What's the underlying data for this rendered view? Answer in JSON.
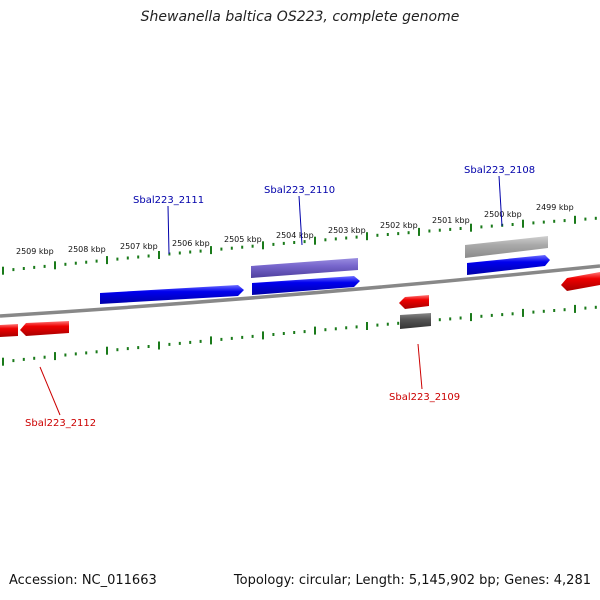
{
  "title": "Shewanella baltica OS223, complete genome",
  "footer": {
    "accession": "Accession: NC_011663",
    "summary": "Topology: circular; Length: 5,145,902 bp; Genes: 4,281"
  },
  "scale_labels": [
    "2509 kbp",
    "2508 kbp",
    "2507 kbp",
    "2506 kbp",
    "2505 kbp",
    "2504 kbp",
    "2503 kbp",
    "2502 kbp",
    "2501 kbp",
    "2500 kbp",
    "2499 kbp"
  ],
  "gene_labels": {
    "g2111": "Sbal223_2111",
    "g2110": "Sbal223_2110",
    "g2108": "Sbal223_2108",
    "g2112": "Sbal223_2112",
    "g2109": "Sbal223_2109"
  },
  "colors": {
    "forward_cds": "#0000ee",
    "reverse_cds": "#ee0000",
    "forward_other": "#7766cc",
    "gray_feature": "#aaaaaa",
    "dark_feature": "#555555",
    "backbone": "#888888",
    "ticks": "#1a7a1a"
  }
}
